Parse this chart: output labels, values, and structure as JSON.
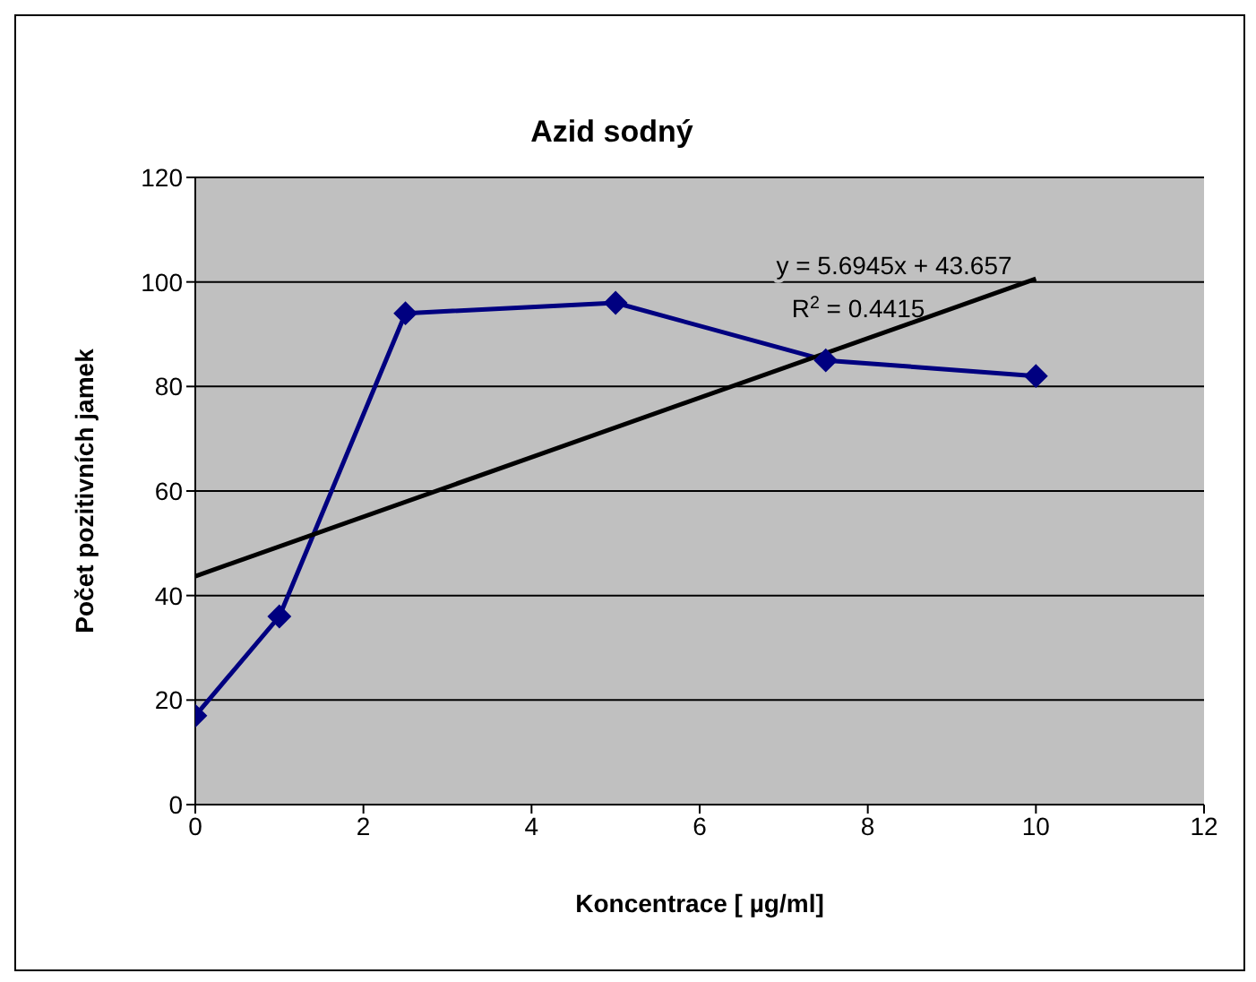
{
  "chart_data": {
    "type": "line",
    "title": "Azid sodný",
    "xlabel": "Koncentrace [ µg/ml]",
    "ylabel": "Počet pozitivních jamek",
    "x": [
      0,
      1,
      2.5,
      5,
      7.5,
      10
    ],
    "series": [
      {
        "color": "#000080",
        "values": [
          17,
          36,
          94,
          96,
          85,
          82
        ],
        "marker": "diamond"
      },
      {
        "type": "line",
        "color": "#000000",
        "x": [
          0,
          10
        ],
        "values": [
          43.7,
          100.6
        ],
        "marker": "none"
      }
    ],
    "xlim": [
      0,
      12
    ],
    "xticks": [
      0,
      2,
      4,
      6,
      8,
      10,
      12
    ],
    "ylim": [
      0,
      120
    ],
    "yticks": [
      0,
      20,
      40,
      60,
      80,
      100,
      120
    ],
    "grid": "y",
    "annotations": [
      "y = 5.6945x + 43.657",
      "R$^{2}$ = 0.4415"
    ]
  }
}
